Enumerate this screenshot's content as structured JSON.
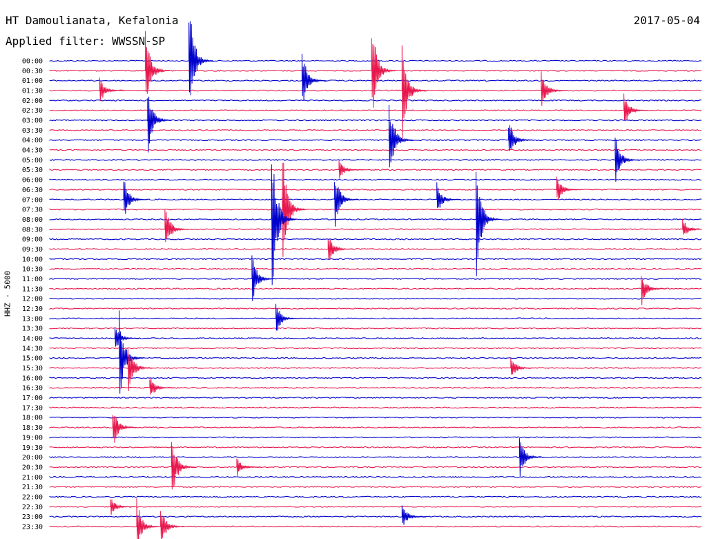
{
  "chart_data": {
    "type": "line",
    "title": "HT Damoulianata, Kefalonia",
    "subtitle": "Applied filter: WWSSN-SP",
    "date": "2017-05-04",
    "ylabel": "HHZ - 5000",
    "tick_labels": [
      "00:00",
      "00:30",
      "01:00",
      "01:30",
      "02:00",
      "02:30",
      "03:00",
      "03:30",
      "04:00",
      "04:30",
      "05:00",
      "05:30",
      "06:00",
      "06:30",
      "07:00",
      "07:30",
      "08:00",
      "08:30",
      "09:00",
      "09:30",
      "10:00",
      "10:30",
      "11:00",
      "11:30",
      "12:00",
      "12:30",
      "13:00",
      "13:30",
      "14:00",
      "14:30",
      "15:00",
      "15:30",
      "16:00",
      "16:30",
      "17:00",
      "17:30",
      "18:00",
      "18:30",
      "19:00",
      "19:30",
      "20:00",
      "20:30",
      "21:00",
      "21:30",
      "22:00",
      "22:30",
      "23:00",
      "23:30"
    ],
    "trace_colors": [
      "#0000cc",
      "#e8174d"
    ],
    "x_minutes_range": [
      0,
      30
    ],
    "grid": false,
    "events": [
      {
        "row": 0,
        "x": 6.4,
        "amp": 7.0
      },
      {
        "row": 1,
        "x": 4.4,
        "amp": 5.0
      },
      {
        "row": 1,
        "x": 14.8,
        "amp": 6.0
      },
      {
        "row": 2,
        "x": 11.6,
        "amp": 3.5
      },
      {
        "row": 3,
        "x": 2.3,
        "amp": 1.5
      },
      {
        "row": 3,
        "x": 16.2,
        "amp": 6.0
      },
      {
        "row": 3,
        "x": 22.6,
        "amp": 2.5
      },
      {
        "row": 5,
        "x": 26.4,
        "amp": 2.0
      },
      {
        "row": 6,
        "x": 4.5,
        "amp": 4.0
      },
      {
        "row": 8,
        "x": 15.6,
        "amp": 5.0
      },
      {
        "row": 8,
        "x": 21.1,
        "amp": 2.5
      },
      {
        "row": 10,
        "x": 26.0,
        "amp": 3.0
      },
      {
        "row": 11,
        "x": 13.3,
        "amp": 1.2
      },
      {
        "row": 13,
        "x": 23.3,
        "amp": 1.8
      },
      {
        "row": 14,
        "x": 3.4,
        "amp": 2.5
      },
      {
        "row": 14,
        "x": 13.1,
        "amp": 3.5
      },
      {
        "row": 14,
        "x": 17.8,
        "amp": 1.8
      },
      {
        "row": 15,
        "x": 10.7,
        "amp": 7.0
      },
      {
        "row": 16,
        "x": 10.2,
        "amp": 10.0
      },
      {
        "row": 16,
        "x": 19.6,
        "amp": 7.0
      },
      {
        "row": 17,
        "x": 5.3,
        "amp": 3.0
      },
      {
        "row": 17,
        "x": 29.1,
        "amp": 1.2
      },
      {
        "row": 19,
        "x": 12.8,
        "amp": 2.0
      },
      {
        "row": 22,
        "x": 9.3,
        "amp": 3.0
      },
      {
        "row": 23,
        "x": 27.2,
        "amp": 2.0
      },
      {
        "row": 26,
        "x": 10.4,
        "amp": 2.0
      },
      {
        "row": 28,
        "x": 3.0,
        "amp": 1.5
      },
      {
        "row": 30,
        "x": 3.2,
        "amp": 5.0
      },
      {
        "row": 31,
        "x": 3.6,
        "amp": 3.5
      },
      {
        "row": 31,
        "x": 21.2,
        "amp": 1.5
      },
      {
        "row": 33,
        "x": 4.6,
        "amp": 1.5
      },
      {
        "row": 37,
        "x": 2.9,
        "amp": 2.5
      },
      {
        "row": 40,
        "x": 21.6,
        "amp": 2.5
      },
      {
        "row": 41,
        "x": 5.6,
        "amp": 4.0
      },
      {
        "row": 41,
        "x": 8.6,
        "amp": 1.2
      },
      {
        "row": 45,
        "x": 2.8,
        "amp": 1.2
      },
      {
        "row": 46,
        "x": 16.2,
        "amp": 1.5
      },
      {
        "row": 47,
        "x": 4.0,
        "amp": 3.0
      },
      {
        "row": 47,
        "x": 5.1,
        "amp": 2.5
      }
    ]
  }
}
